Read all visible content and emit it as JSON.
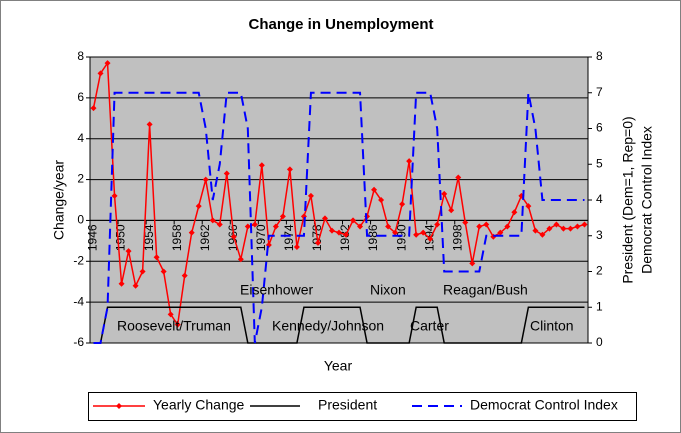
{
  "chart_data": {
    "type": "line",
    "title": "Change in Unemployment",
    "x_label": "Year",
    "y_label": "Change/year",
    "y2_label": [
      "President (Dem=1, Rep=0)",
      "Democrat Control Index"
    ],
    "categories": [
      "1946",
      null,
      null,
      null,
      "1950",
      null,
      null,
      null,
      "1954",
      null,
      null,
      null,
      "1958",
      null,
      null,
      null,
      "1962",
      null,
      null,
      null,
      "1966",
      null,
      null,
      null,
      "1970",
      null,
      null,
      null,
      "1974",
      null,
      null,
      null,
      "1978",
      null,
      null,
      null,
      "1982",
      null,
      null,
      null,
      "1986",
      null,
      null,
      null,
      "1990",
      null,
      null,
      null,
      "1994",
      null,
      null,
      null,
      "1998",
      null,
      null,
      null,
      null,
      null,
      null,
      null,
      null,
      null,
      null,
      null,
      null,
      null,
      null,
      null,
      null,
      null,
      null
    ],
    "ylim": [
      -6,
      8
    ],
    "yticks": [
      -6,
      -4,
      -2,
      0,
      2,
      4,
      6,
      8
    ],
    "y2lim": [
      0,
      8
    ],
    "y2ticks": [
      0,
      1,
      2,
      3,
      4,
      5,
      6,
      7,
      8
    ],
    "grid": true,
    "legend": "bottom",
    "series": [
      {
        "name": "Yearly Change",
        "color": "#ff0000",
        "marker": "diamond",
        "values": [
          5.5,
          7.2,
          7.7,
          1.2,
          -3.1,
          -1.5,
          -3.2,
          -2.5,
          4.7,
          -1.8,
          -2.5,
          -4.6,
          -5.1,
          -2.7,
          -0.6,
          0.7,
          2.0,
          0,
          -0.2,
          2.3,
          -0.8,
          -1.9,
          -0.3,
          -0.2,
          2.7,
          -1.2,
          -0.3,
          0.2,
          2.5,
          -1.3,
          0.2,
          1.2,
          -1.1,
          0.1,
          -0.5,
          -0.6,
          -0.7,
          0,
          -0.3,
          0.2,
          1.5,
          1.0,
          -0.3,
          -0.6,
          0.8,
          2.9,
          -0.7,
          -0.6,
          -0.9,
          -0.2,
          1.3,
          0.5,
          2.1,
          -0.1,
          -2.1,
          -0.3,
          -0.2,
          -0.8,
          -0.6,
          -0.3,
          0.4,
          1.2,
          0.7,
          -0.5,
          -0.7,
          -0.4,
          -0.2,
          -0.4,
          -0.4,
          -0.3,
          -0.2
        ]
      },
      {
        "name": "President",
        "color": "#000000",
        "axis": "y2",
        "values": [
          0,
          0,
          1,
          1,
          1,
          1,
          1,
          1,
          1,
          1,
          1,
          1,
          1,
          1,
          1,
          1,
          1,
          1,
          1,
          1,
          1,
          1,
          0,
          0,
          0,
          0,
          0,
          0,
          0,
          0,
          1,
          1,
          1,
          1,
          1,
          1,
          1,
          1,
          1,
          0,
          0,
          0,
          0,
          0,
          0,
          0,
          1,
          1,
          1,
          1,
          0,
          0,
          0,
          0,
          0,
          0,
          0,
          0,
          0,
          0,
          0,
          0,
          1,
          1,
          1,
          1,
          1,
          1,
          1,
          1,
          1
        ]
      },
      {
        "name": "Democrat Control Index",
        "color": "#0000ff",
        "axis": "y2",
        "style": "dashed",
        "values": [
          0,
          0,
          1,
          7,
          7,
          7,
          7,
          7,
          7,
          7,
          7,
          7,
          7,
          7,
          7,
          7,
          6,
          4,
          5,
          7,
          7,
          7,
          6,
          0,
          1,
          3,
          3,
          3,
          3,
          3,
          3,
          7,
          7,
          7,
          7,
          7,
          7,
          7,
          7,
          3,
          3,
          3,
          3,
          3,
          3,
          3,
          7,
          7,
          7,
          6,
          2,
          2,
          2,
          2,
          2,
          2,
          3,
          3,
          3,
          3,
          3,
          3,
          7,
          6,
          4,
          4,
          4,
          4,
          4,
          4,
          4
        ]
      }
    ],
    "annotations": [
      "Eisenhower",
      "Nixon",
      "Reagan/Bush",
      "Roosevelt/Truman",
      "Kennedy/Johnson",
      "Carter",
      "Clinton"
    ]
  }
}
